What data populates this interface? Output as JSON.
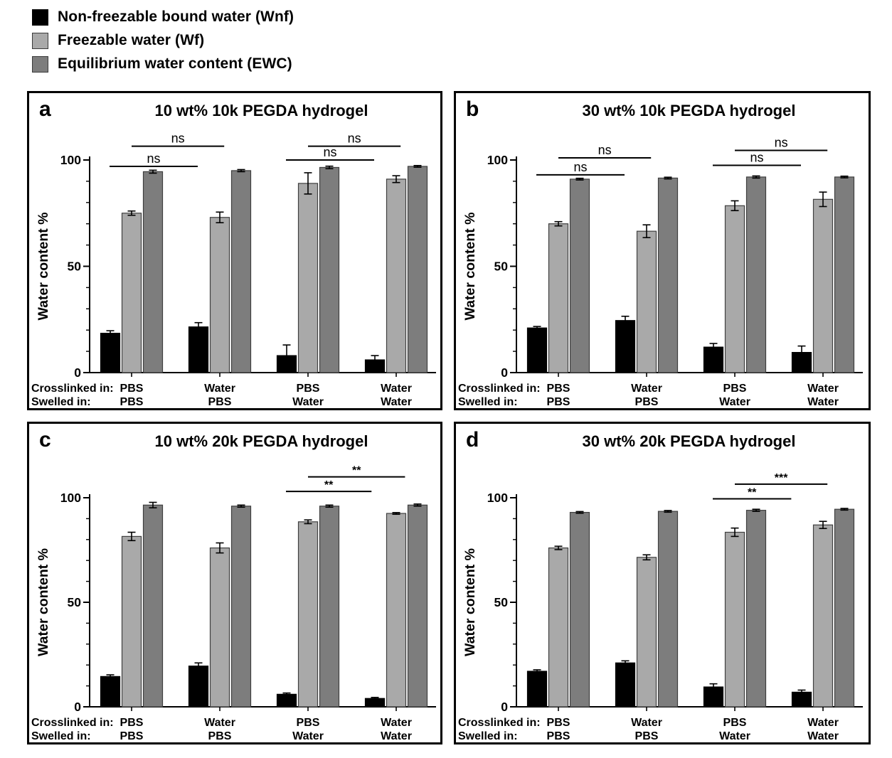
{
  "legend": {
    "items": [
      {
        "id": "wnf",
        "label": "Non-freezable bound water (Wnf)",
        "color": "#000000"
      },
      {
        "id": "wf",
        "label": "Freezable water (Wf)",
        "color": "#a9a9a9"
      },
      {
        "id": "ewc",
        "label": "Equilibrium water content (EWC)",
        "color": "#7d7d7d"
      }
    ]
  },
  "colors": {
    "wnf_bar": "#000000",
    "wf_bar": "#a9a9a9",
    "ewc_bar": "#7d7d7d",
    "bar_border": "#3f3f3f",
    "axis": "#000000",
    "text": "#000000"
  },
  "x_axis": {
    "row1_header": "Crosslinked in:",
    "row2_header": "Swelled in:"
  },
  "chart_data": [
    {
      "type": "bar",
      "panel": "a",
      "title": "10 wt% 10k PEGDA hydrogel",
      "ylabel": "Water content %",
      "ylim": [
        0,
        100
      ],
      "yticks": [
        0,
        50,
        100
      ],
      "minor_tick_step": 10,
      "groups": [
        {
          "crosslinked_in": "PBS",
          "swelled_in": "PBS"
        },
        {
          "crosslinked_in": "Water",
          "swelled_in": "PBS"
        },
        {
          "crosslinked_in": "PBS",
          "swelled_in": "Water"
        },
        {
          "crosslinked_in": "Water",
          "swelled_in": "Water"
        }
      ],
      "series": [
        {
          "name": "Non-freezable bound water (Wnf)",
          "values": [
            18.5,
            21.5,
            8,
            6
          ],
          "errors": [
            1.2,
            2,
            5,
            2
          ]
        },
        {
          "name": "Freezable water (Wf)",
          "values": [
            75,
            73,
            89,
            91
          ],
          "errors": [
            1,
            2.5,
            5,
            1.6
          ]
        },
        {
          "name": "Equilibrium water content (EWC)",
          "values": [
            94.5,
            95,
            96.5,
            97
          ],
          "errors": [
            0.7,
            0.5,
            0.6,
            0.4
          ]
        }
      ],
      "significance": [
        {
          "label": "ns",
          "x1_group": -0.25,
          "x2_group": 0.75,
          "y_value": 97
        },
        {
          "label": "ns",
          "x1_group": 0.0,
          "x2_group": 1.05,
          "y_value": 106.5
        },
        {
          "label": "ns",
          "x1_group": 1.75,
          "x2_group": 2.75,
          "y_value": 100
        },
        {
          "label": "ns",
          "x1_group": 2.0,
          "x2_group": 3.05,
          "y_value": 106.5
        }
      ]
    },
    {
      "type": "bar",
      "panel": "b",
      "title": "30 wt% 10k PEGDA hydrogel",
      "ylabel": "Water content %",
      "ylim": [
        0,
        100
      ],
      "yticks": [
        0,
        50,
        100
      ],
      "minor_tick_step": 10,
      "groups": [
        {
          "crosslinked_in": "PBS",
          "swelled_in": "PBS"
        },
        {
          "crosslinked_in": "Water",
          "swelled_in": "PBS"
        },
        {
          "crosslinked_in": "PBS",
          "swelled_in": "Water"
        },
        {
          "crosslinked_in": "Water",
          "swelled_in": "Water"
        }
      ],
      "series": [
        {
          "name": "Non-freezable bound water (Wnf)",
          "values": [
            21,
            24.5,
            12,
            9.5
          ],
          "errors": [
            0.7,
            2,
            1.7,
            3
          ]
        },
        {
          "name": "Freezable water (Wf)",
          "values": [
            70,
            66.5,
            78.5,
            81.5
          ],
          "errors": [
            1,
            3,
            2.3,
            3.4
          ]
        },
        {
          "name": "Equilibrium water content (EWC)",
          "values": [
            91,
            91.5,
            92,
            92
          ],
          "errors": [
            0.4,
            0.4,
            0.5,
            0.4
          ]
        }
      ],
      "significance": [
        {
          "label": "ns",
          "x1_group": -0.25,
          "x2_group": 0.75,
          "y_value": 93
        },
        {
          "label": "ns",
          "x1_group": 0.0,
          "x2_group": 1.05,
          "y_value": 101
        },
        {
          "label": "ns",
          "x1_group": 1.75,
          "x2_group": 2.75,
          "y_value": 97.5
        },
        {
          "label": "ns",
          "x1_group": 2.0,
          "x2_group": 3.05,
          "y_value": 104.5
        }
      ]
    },
    {
      "type": "bar",
      "panel": "c",
      "title": "10 wt% 20k PEGDA hydrogel",
      "ylabel": "Water content %",
      "ylim": [
        0,
        100
      ],
      "yticks": [
        0,
        50,
        100
      ],
      "minor_tick_step": 10,
      "groups": [
        {
          "crosslinked_in": "PBS",
          "swelled_in": "PBS"
        },
        {
          "crosslinked_in": "Water",
          "swelled_in": "PBS"
        },
        {
          "crosslinked_in": "PBS",
          "swelled_in": "Water"
        },
        {
          "crosslinked_in": "Water",
          "swelled_in": "Water"
        }
      ],
      "series": [
        {
          "name": "Non-freezable bound water (Wnf)",
          "values": [
            14.5,
            19.5,
            6,
            4
          ],
          "errors": [
            0.8,
            1.5,
            0.6,
            0.5
          ]
        },
        {
          "name": "Freezable water (Wf)",
          "values": [
            81.5,
            76,
            88.5,
            92.5
          ],
          "errors": [
            2,
            2.4,
            0.9,
            0.4
          ]
        },
        {
          "name": "Equilibrium water content (EWC)",
          "values": [
            96.5,
            96,
            96,
            96.5
          ],
          "errors": [
            1.3,
            0.5,
            0.5,
            0.5
          ]
        }
      ],
      "significance": [
        {
          "label": "**",
          "x1_group": 1.75,
          "x2_group": 2.72,
          "y_value": 103
        },
        {
          "label": "**",
          "x1_group": 2.0,
          "x2_group": 3.1,
          "y_value": 110
        }
      ]
    },
    {
      "type": "bar",
      "panel": "d",
      "title": "30 wt% 20k PEGDA hydrogel",
      "ylabel": "Water content %",
      "ylim": [
        0,
        100
      ],
      "yticks": [
        0,
        50,
        100
      ],
      "minor_tick_step": 10,
      "groups": [
        {
          "crosslinked_in": "PBS",
          "swelled_in": "PBS"
        },
        {
          "crosslinked_in": "Water",
          "swelled_in": "PBS"
        },
        {
          "crosslinked_in": "PBS",
          "swelled_in": "Water"
        },
        {
          "crosslinked_in": "Water",
          "swelled_in": "Water"
        }
      ],
      "series": [
        {
          "name": "Non-freezable bound water (Wnf)",
          "values": [
            17,
            21,
            9.5,
            7
          ],
          "errors": [
            0.7,
            1,
            1.5,
            1
          ]
        },
        {
          "name": "Freezable water (Wf)",
          "values": [
            76,
            71.5,
            83.5,
            87
          ],
          "errors": [
            0.8,
            1.2,
            2,
            1.7
          ]
        },
        {
          "name": "Equilibrium water content (EWC)",
          "values": [
            93,
            93.5,
            94,
            94.5
          ],
          "errors": [
            0.4,
            0.4,
            0.5,
            0.4
          ]
        }
      ],
      "significance": [
        {
          "label": "**",
          "x1_group": 1.75,
          "x2_group": 2.64,
          "y_value": 99.5
        },
        {
          "label": "***",
          "x1_group": 2.0,
          "x2_group": 3.05,
          "y_value": 106.5
        }
      ]
    }
  ]
}
